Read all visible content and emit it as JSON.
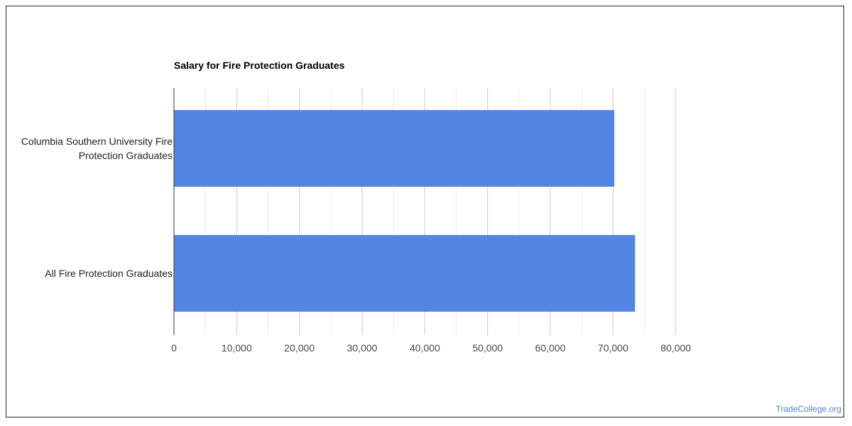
{
  "chart_data": {
    "type": "bar",
    "orientation": "horizontal",
    "title": "Salary for Fire Protection Graduates",
    "categories": [
      [
        "Columbia Southern University Fire",
        "Protection Graduates"
      ],
      [
        "All Fire Protection Graduates"
      ]
    ],
    "values": [
      70200,
      73500
    ],
    "xlim": [
      0,
      80000
    ],
    "xticks": [
      0,
      10000,
      20000,
      30000,
      40000,
      50000,
      60000,
      70000,
      80000
    ],
    "xtick_labels": [
      "0",
      "10,000",
      "20,000",
      "30,000",
      "40,000",
      "50,000",
      "60,000",
      "70,000",
      "80,000"
    ],
    "grid": true,
    "bar_color": "#5386e4",
    "xlabel": "",
    "ylabel": ""
  },
  "credit": "TradeCollege.org"
}
